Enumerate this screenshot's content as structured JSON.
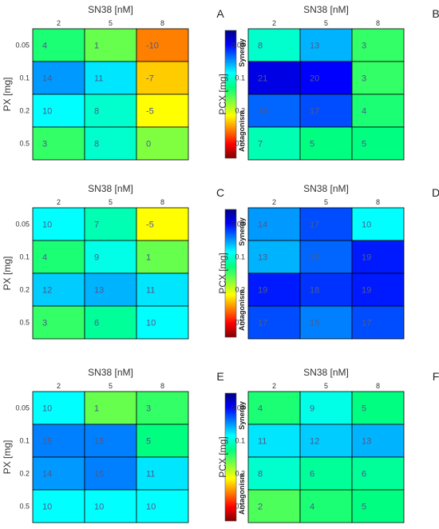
{
  "colors": {
    "colormap": [
      "#7f0000",
      "#ff0000",
      "#ff8000",
      "#ffff00",
      "#80ff40",
      "#00ff80",
      "#00ffff",
      "#0080ff",
      "#0000ff",
      "#00007f"
    ],
    "cell_text": "#4d5a8c",
    "grid_line": "#000000"
  },
  "chart_data": [
    {
      "type": "heatmap",
      "panel_label": "A",
      "xlabel": "SN38 [nM]",
      "ylabel": "PX [mg]",
      "x_ticks": [
        "2",
        "5",
        "8"
      ],
      "y_ticks": [
        "0.05",
        "0.1",
        "0.2",
        "0.5"
      ],
      "values": [
        [
          4,
          1,
          -10
        ],
        [
          14,
          11,
          -7
        ],
        [
          10,
          8,
          -5
        ],
        [
          3,
          8,
          0
        ]
      ],
      "colorbar": {
        "top_label": "Synergy",
        "bottom_label": "Antagonism",
        "range": [
          -20,
          25
        ]
      }
    },
    {
      "type": "heatmap",
      "panel_label": "B",
      "xlabel": "SN38 [nM]",
      "ylabel": "PCX [mg]",
      "x_ticks": [
        "2",
        "5",
        "8"
      ],
      "y_ticks": [
        "0.05",
        "0.1",
        "0.2",
        "0.5"
      ],
      "values": [
        [
          8,
          13,
          3
        ],
        [
          21,
          20,
          3
        ],
        [
          16,
          17,
          4
        ],
        [
          7,
          5,
          5
        ]
      ],
      "colorbar": {
        "top_label": "Synergy",
        "bottom_label": "Antagonism",
        "range": [
          -20,
          25
        ]
      }
    },
    {
      "type": "heatmap",
      "panel_label": "C",
      "xlabel": "SN38 [nM]",
      "ylabel": "PX [mg]",
      "x_ticks": [
        "2",
        "5",
        "8"
      ],
      "y_ticks": [
        "0.05",
        "0.1",
        "0.2",
        "0.5"
      ],
      "values": [
        [
          10,
          7,
          -5
        ],
        [
          4,
          9,
          1
        ],
        [
          12,
          13,
          11
        ],
        [
          3,
          6,
          10
        ]
      ],
      "colorbar": {
        "top_label": "Synergy",
        "bottom_label": "Antagonism",
        "range": [
          -20,
          25
        ]
      }
    },
    {
      "type": "heatmap",
      "panel_label": "D",
      "xlabel": "SN38 [nM]",
      "ylabel": "PCX [mg]",
      "x_ticks": [
        "2",
        "5",
        "8"
      ],
      "y_ticks": [
        "0.05",
        "0.1",
        "0.2",
        "0.5"
      ],
      "values": [
        [
          14,
          17,
          10
        ],
        [
          13,
          16,
          19
        ],
        [
          19,
          18,
          19
        ],
        [
          17,
          15,
          17
        ]
      ],
      "colorbar": {
        "top_label": "Synergy",
        "bottom_label": "Antagonism",
        "range": [
          -20,
          25
        ]
      }
    },
    {
      "type": "heatmap",
      "panel_label": "E",
      "xlabel": "SN38 [nM]",
      "ylabel": "PX [mg]",
      "x_ticks": [
        "2",
        "5",
        "8"
      ],
      "y_ticks": [
        "0.05",
        "0.1",
        "0.2",
        "0.5"
      ],
      "values": [
        [
          10,
          1,
          3
        ],
        [
          15,
          15,
          5
        ],
        [
          14,
          15,
          11
        ],
        [
          10,
          10,
          10
        ]
      ],
      "colorbar": {
        "top_label": "Synergy",
        "bottom_label": "Antagonism",
        "range": [
          -20,
          25
        ]
      }
    },
    {
      "type": "heatmap",
      "panel_label": "F",
      "xlabel": "SN38 [nM]",
      "ylabel": "PCX [mg]",
      "x_ticks": [
        "2",
        "5",
        "8"
      ],
      "y_ticks": [
        "0.05",
        "0.1",
        "0.2",
        "0.5"
      ],
      "values": [
        [
          4,
          9,
          5
        ],
        [
          11,
          12,
          13
        ],
        [
          8,
          6,
          6
        ],
        [
          2,
          4,
          5
        ]
      ],
      "colorbar": {
        "top_label": "Synergy",
        "bottom_label": "Antagonism",
        "range": [
          -20,
          25
        ]
      }
    }
  ]
}
